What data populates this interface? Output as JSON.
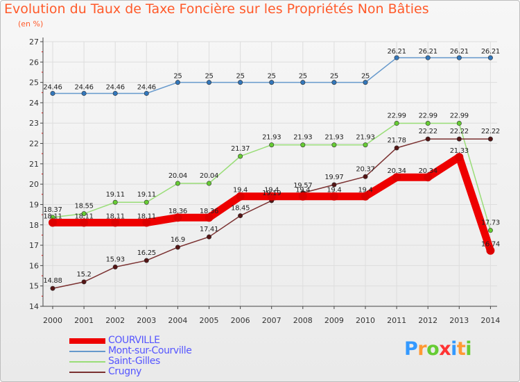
{
  "title": "Evolution du Taux de Taxe Foncière sur les Propriétés Non Bâties",
  "unit": "(en %)",
  "logo": {
    "text": "Proxiti",
    "letters": [
      "P",
      "r",
      "o",
      "x",
      "i",
      "t",
      "i"
    ],
    "colors": [
      "#3399ff",
      "#ff9933",
      "#66cc33",
      "#ff3333",
      "#3399ff",
      "#ff9933",
      "#66cc33"
    ]
  },
  "chart_data": {
    "type": "line",
    "title": "Evolution du Taux de Taxe Foncière sur les Propriétés Non Bâties",
    "ylabel": "(en %)",
    "xlabel": "",
    "ylim": [
      14,
      27
    ],
    "yticks": [
      "14",
      "15",
      "16",
      "17",
      "18",
      "19",
      "20",
      "21",
      "22",
      "23",
      "24",
      "25",
      "26",
      "27"
    ],
    "x": [
      "2000",
      "2001",
      "2002",
      "2003",
      "2004",
      "2005",
      "2006",
      "2007",
      "2008",
      "2009",
      "2010",
      "2011",
      "2012",
      "2013",
      "2014"
    ],
    "legend_position": "bottom-left",
    "series": [
      {
        "name": "COURVILLE",
        "color": "#ee0000",
        "marker": "#dd0000",
        "values": [
          18.11,
          18.11,
          18.11,
          18.11,
          18.36,
          18.36,
          19.4,
          19.4,
          19.4,
          19.4,
          19.4,
          20.34,
          20.34,
          21.33,
          16.74
        ],
        "labels": [
          "18.11",
          "18.11",
          "18.11",
          "18.11",
          "18.36",
          "18.36",
          "19.4",
          "19.4",
          "19.4",
          "19.4",
          "19.4",
          "20.34",
          "20.34",
          "21.33",
          "16.74"
        ]
      },
      {
        "name": "Mont-sur-Courville",
        "color": "#6699cc",
        "marker": "#3377bb",
        "values": [
          24.46,
          24.46,
          24.46,
          24.46,
          25,
          25,
          25,
          25,
          25,
          25,
          25,
          26.21,
          26.21,
          26.21,
          26.21
        ],
        "labels": [
          "24.46",
          "24.46",
          "24.46",
          "24.46",
          "25",
          "25",
          "25",
          "25",
          "25",
          "25",
          "25",
          "26.21",
          "26.21",
          "26.21",
          "26.21"
        ]
      },
      {
        "name": "Saint-Gilles",
        "color": "#99dd77",
        "marker": "#66cc33",
        "values": [
          18.37,
          18.55,
          19.11,
          19.11,
          20.04,
          20.04,
          21.37,
          21.93,
          21.93,
          21.93,
          21.93,
          22.99,
          22.99,
          22.99,
          17.73
        ],
        "labels": [
          "18.37",
          "18.55",
          "19.11",
          "19.11",
          "20.04",
          "20.04",
          "21.37",
          "21.93",
          "21.93",
          "21.93",
          "21.93",
          "22.99",
          "22.99",
          "22.99",
          "17.73"
        ]
      },
      {
        "name": "Crugny",
        "color": "#7a3030",
        "marker": "#551515",
        "values": [
          14.88,
          15.2,
          15.93,
          16.25,
          16.9,
          17.41,
          18.45,
          19.19,
          19.57,
          19.97,
          20.37,
          21.78,
          22.22,
          22.22,
          22.22
        ],
        "labels": [
          "14.88",
          "15.2",
          "15.93",
          "16.25",
          "16.9",
          "17.41",
          "18.45",
          "19.19",
          "19.57",
          "19.97",
          "20.37",
          "21.78",
          "22.22",
          "22.22",
          "22.22"
        ]
      }
    ]
  }
}
